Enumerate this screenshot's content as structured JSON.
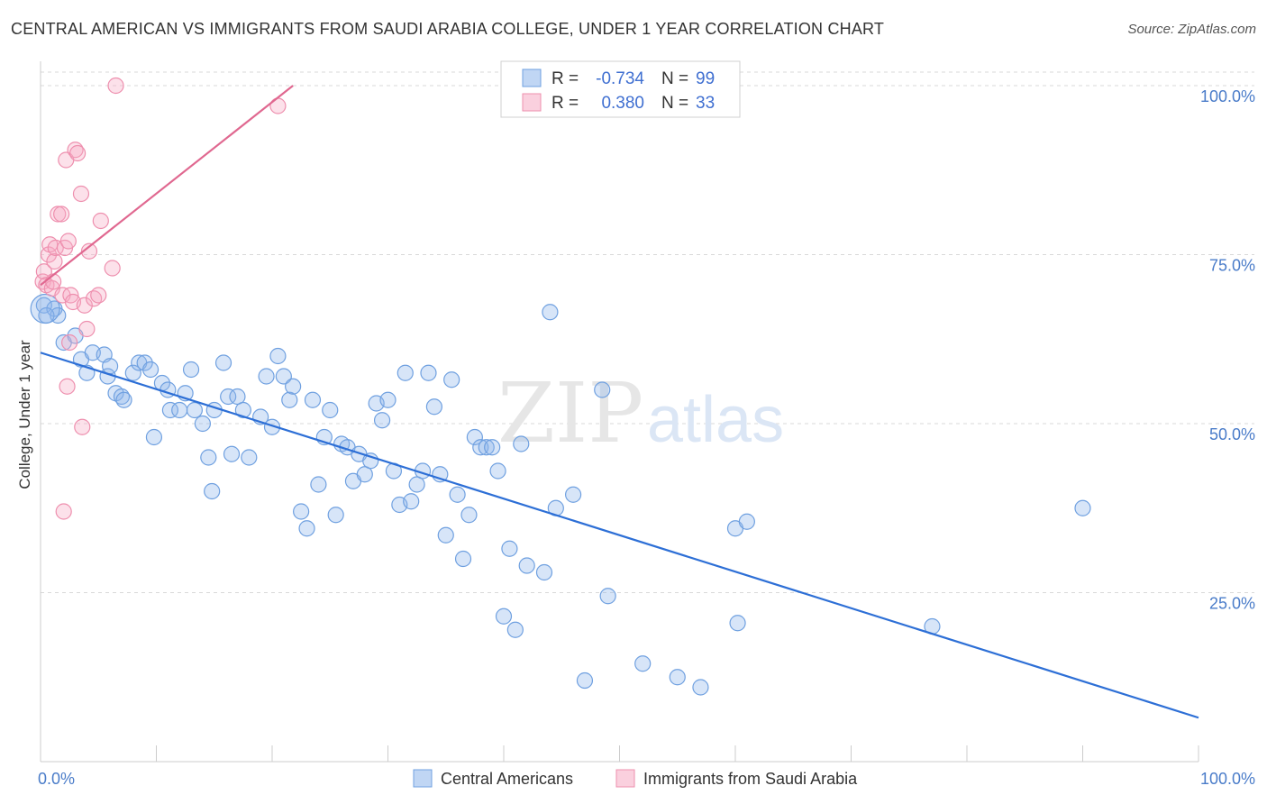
{
  "title": "CENTRAL AMERICAN VS IMMIGRANTS FROM SAUDI ARABIA COLLEGE, UNDER 1 YEAR CORRELATION CHART",
  "source": "Source: ZipAtlas.com",
  "watermark": {
    "zip": "ZIP",
    "atlas": "atlas"
  },
  "colors": {
    "blue": "#6fa0e0",
    "blue_fill": "rgba(140,180,235,0.35)",
    "blue_line": "#2d6fd6",
    "pink": "#ee8fae",
    "pink_fill": "rgba(245,170,195,0.35)",
    "pink_line": "#e06890",
    "grid": "#d9d9d9",
    "tick_text": "#4a7cc9"
  },
  "legend": {
    "rows": [
      {
        "r_label": "R =",
        "r_value": "-0.734",
        "n_label": "N =",
        "n_value": "99"
      },
      {
        "r_label": "R =",
        "r_value": "0.380",
        "n_label": "N =",
        "n_value": "33"
      }
    ]
  },
  "bottom_legend": [
    "Central Americans",
    "Immigrants from Saudi Arabia"
  ],
  "chart_data": {
    "type": "scatter",
    "title": "CENTRAL AMERICAN VS IMMIGRANTS FROM SAUDI ARABIA COLLEGE, UNDER 1 YEAR CORRELATION CHART",
    "xlabel": "",
    "ylabel": "College, Under 1 year",
    "xlim": [
      0,
      100
    ],
    "ylim": [
      0,
      102
    ],
    "x_tick_labels": [
      "0.0%",
      "100.0%"
    ],
    "y_ticks": [
      25,
      50,
      75,
      100
    ],
    "y_tick_labels": [
      "25.0%",
      "50.0%",
      "75.0%",
      "100.0%"
    ],
    "grid": true,
    "legend_position": "top-center",
    "series": [
      {
        "name": "Central Americans",
        "color": "#6fa0e0",
        "r": -0.734,
        "n": 99,
        "trend": {
          "x": [
            0,
            100
          ],
          "y": [
            60.5,
            6.5
          ]
        },
        "points": [
          [
            0.3,
            67.5
          ],
          [
            1.2,
            67
          ],
          [
            1.5,
            66
          ],
          [
            2,
            62
          ],
          [
            3,
            63
          ],
          [
            3.5,
            59.5
          ],
          [
            4,
            57.5
          ],
          [
            4.5,
            60.5
          ],
          [
            5.5,
            60.2
          ],
          [
            5.8,
            57
          ],
          [
            6,
            58.5
          ],
          [
            6.5,
            54.5
          ],
          [
            7,
            54
          ],
          [
            7.2,
            53.5
          ],
          [
            8,
            57.5
          ],
          [
            8.5,
            59
          ],
          [
            9,
            59
          ],
          [
            9.5,
            58
          ],
          [
            9.8,
            48
          ],
          [
            10.5,
            56
          ],
          [
            11,
            55
          ],
          [
            11.2,
            52
          ],
          [
            12,
            52
          ],
          [
            12.5,
            54.5
          ],
          [
            13,
            58
          ],
          [
            13.3,
            52
          ],
          [
            14,
            50
          ],
          [
            14.5,
            45
          ],
          [
            14.8,
            40
          ],
          [
            15,
            52
          ],
          [
            15.8,
            59
          ],
          [
            16.2,
            54
          ],
          [
            16.5,
            45.5
          ],
          [
            17,
            54
          ],
          [
            17.5,
            52
          ],
          [
            18,
            45
          ],
          [
            19,
            51
          ],
          [
            19.5,
            57
          ],
          [
            20,
            49.5
          ],
          [
            20.5,
            60
          ],
          [
            21,
            57
          ],
          [
            21.5,
            53.5
          ],
          [
            21.8,
            55.5
          ],
          [
            22.5,
            37
          ],
          [
            23,
            34.5
          ],
          [
            23.5,
            53.5
          ],
          [
            24,
            41
          ],
          [
            24.5,
            48
          ],
          [
            25,
            52
          ],
          [
            25.5,
            36.5
          ],
          [
            26,
            47
          ],
          [
            26.5,
            46.5
          ],
          [
            27,
            41.5
          ],
          [
            27.5,
            45.5
          ],
          [
            28,
            42.5
          ],
          [
            28.5,
            44.5
          ],
          [
            29,
            53
          ],
          [
            29.5,
            50.5
          ],
          [
            30,
            53.5
          ],
          [
            30.5,
            43
          ],
          [
            31,
            38
          ],
          [
            31.5,
            57.5
          ],
          [
            32,
            38.5
          ],
          [
            32.5,
            41
          ],
          [
            33,
            43
          ],
          [
            33.5,
            57.5
          ],
          [
            34,
            52.5
          ],
          [
            34.5,
            42.5
          ],
          [
            35,
            33.5
          ],
          [
            35.5,
            56.5
          ],
          [
            36,
            39.5
          ],
          [
            36.5,
            30
          ],
          [
            37,
            36.5
          ],
          [
            37.5,
            48
          ],
          [
            38,
            46.5
          ],
          [
            38.5,
            46.5
          ],
          [
            39,
            46.5
          ],
          [
            39.5,
            43
          ],
          [
            40,
            21.5
          ],
          [
            40.5,
            31.5
          ],
          [
            41,
            19.5
          ],
          [
            41.5,
            47
          ],
          [
            42,
            29
          ],
          [
            43.5,
            28
          ],
          [
            44,
            66.5
          ],
          [
            44.5,
            37.5
          ],
          [
            46,
            39.5
          ],
          [
            47,
            12
          ],
          [
            48.5,
            55
          ],
          [
            49,
            24.5
          ],
          [
            52,
            14.5
          ],
          [
            55,
            12.5
          ],
          [
            57,
            11
          ],
          [
            60,
            34.5
          ],
          [
            60.2,
            20.5
          ],
          [
            61,
            35.5
          ],
          [
            77,
            20
          ],
          [
            90,
            37.5
          ],
          [
            0.5,
            66
          ]
        ]
      },
      {
        "name": "Immigrants from Saudi Arabia",
        "color": "#ee8fae",
        "r": 0.38,
        "n": 33,
        "trend": {
          "x": [
            0,
            21.8
          ],
          "y": [
            70.5,
            100
          ]
        },
        "points": [
          [
            0.2,
            71
          ],
          [
            0.3,
            72.5
          ],
          [
            0.5,
            70.5
          ],
          [
            0.7,
            75
          ],
          [
            0.8,
            76.5
          ],
          [
            1,
            70
          ],
          [
            1.1,
            71
          ],
          [
            1.2,
            74
          ],
          [
            1.3,
            76
          ],
          [
            1.5,
            81
          ],
          [
            1.8,
            81
          ],
          [
            1.9,
            69
          ],
          [
            2,
            37
          ],
          [
            2.1,
            76
          ],
          [
            2.2,
            89
          ],
          [
            2.3,
            55.5
          ],
          [
            2.4,
            77
          ],
          [
            2.5,
            62
          ],
          [
            2.6,
            69
          ],
          [
            2.8,
            68
          ],
          [
            3,
            90.5
          ],
          [
            3.2,
            90
          ],
          [
            3.5,
            84
          ],
          [
            3.6,
            49.5
          ],
          [
            3.8,
            67.5
          ],
          [
            4,
            64
          ],
          [
            4.2,
            75.5
          ],
          [
            4.6,
            68.5
          ],
          [
            5,
            69
          ],
          [
            5.2,
            80
          ],
          [
            6.2,
            73
          ],
          [
            6.5,
            100
          ],
          [
            20.5,
            97
          ]
        ]
      }
    ]
  }
}
